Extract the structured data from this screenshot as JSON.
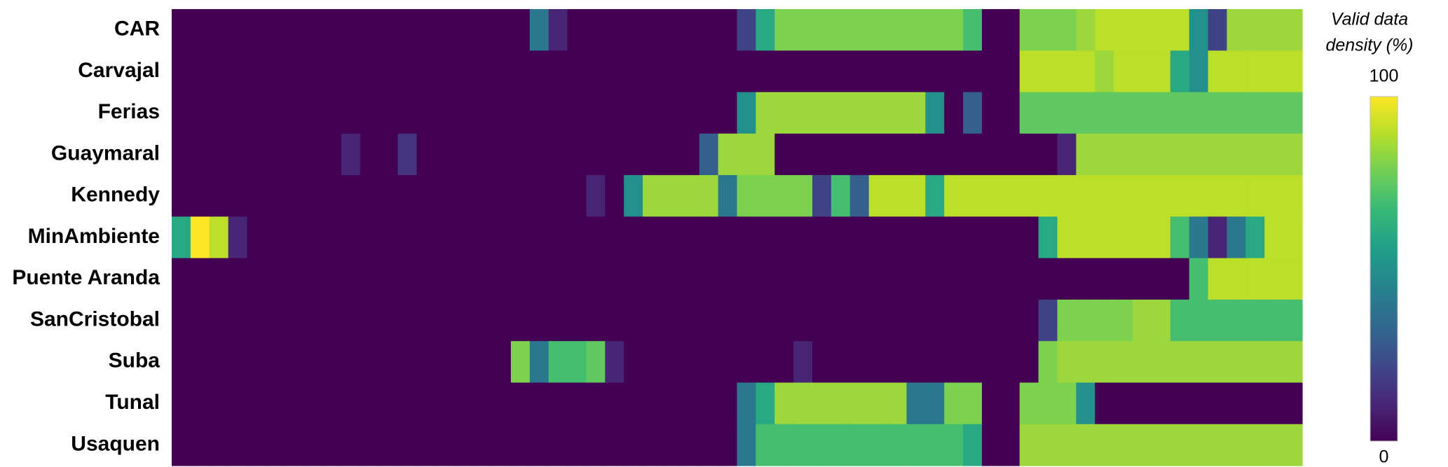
{
  "chart_data": {
    "type": "heatmap",
    "colorbar_title": [
      "Valid data",
      "density (%)"
    ],
    "colormap": "viridis",
    "zlim": [
      0,
      100
    ],
    "zticks": [
      0,
      100
    ],
    "rows": [
      "CAR",
      "Carvajal",
      "Ferias",
      "Guaymaral",
      "Kennedy",
      "MinAmbiente",
      "Puente Aranda",
      "SanCristobal",
      "Suba",
      "Tunal",
      "Usaquen"
    ],
    "values": [
      [
        0,
        0,
        0,
        0,
        0,
        0,
        0,
        0,
        0,
        0,
        0,
        0,
        0,
        0,
        0,
        0,
        0,
        0,
        0,
        40,
        10,
        0,
        0,
        0,
        0,
        0,
        0,
        0,
        0,
        0,
        20,
        60,
        80,
        80,
        80,
        80,
        80,
        80,
        80,
        80,
        80,
        80,
        70,
        0,
        0,
        80,
        80,
        80,
        85,
        90,
        90,
        90,
        90,
        90,
        50,
        20,
        85,
        85,
        85,
        85
      ],
      [
        0,
        0,
        0,
        0,
        0,
        0,
        0,
        0,
        0,
        0,
        0,
        0,
        0,
        0,
        0,
        0,
        0,
        0,
        0,
        0,
        0,
        0,
        0,
        0,
        0,
        0,
        0,
        0,
        0,
        0,
        0,
        0,
        0,
        0,
        0,
        0,
        0,
        0,
        0,
        0,
        0,
        0,
        0,
        0,
        0,
        90,
        90,
        90,
        90,
        85,
        90,
        90,
        90,
        60,
        50,
        90,
        90,
        90,
        90,
        90
      ],
      [
        0,
        0,
        0,
        0,
        0,
        0,
        0,
        0,
        0,
        0,
        0,
        0,
        0,
        0,
        0,
        0,
        0,
        0,
        0,
        0,
        0,
        0,
        0,
        0,
        0,
        0,
        0,
        0,
        0,
        0,
        50,
        85,
        85,
        85,
        85,
        85,
        85,
        85,
        85,
        85,
        50,
        0,
        30,
        0,
        0,
        75,
        75,
        75,
        75,
        75,
        75,
        75,
        75,
        75,
        75,
        75,
        75,
        75,
        75,
        75
      ],
      [
        0,
        0,
        0,
        0,
        0,
        0,
        0,
        0,
        0,
        10,
        0,
        0,
        15,
        0,
        0,
        0,
        0,
        0,
        0,
        0,
        0,
        0,
        0,
        0,
        0,
        0,
        0,
        0,
        30,
        85,
        85,
        85,
        0,
        0,
        0,
        0,
        0,
        0,
        0,
        0,
        0,
        0,
        0,
        0,
        0,
        0,
        0,
        10,
        85,
        85,
        85,
        85,
        85,
        85,
        85,
        85,
        85,
        85,
        85,
        85
      ],
      [
        0,
        0,
        0,
        0,
        0,
        0,
        0,
        0,
        0,
        0,
        0,
        0,
        0,
        0,
        0,
        0,
        0,
        0,
        0,
        0,
        0,
        0,
        10,
        0,
        50,
        85,
        85,
        85,
        85,
        40,
        80,
        80,
        80,
        80,
        20,
        70,
        30,
        90,
        90,
        90,
        60,
        90,
        90,
        90,
        90,
        90,
        90,
        90,
        90,
        90,
        90,
        90,
        90,
        90,
        90,
        90,
        90,
        90,
        90,
        90
      ],
      [
        60,
        100,
        90,
        10,
        0,
        0,
        0,
        0,
        0,
        0,
        0,
        0,
        0,
        0,
        0,
        0,
        0,
        0,
        0,
        0,
        0,
        0,
        0,
        0,
        0,
        0,
        0,
        0,
        0,
        0,
        0,
        0,
        0,
        0,
        0,
        0,
        0,
        0,
        0,
        0,
        0,
        0,
        0,
        0,
        0,
        0,
        60,
        90,
        90,
        90,
        90,
        90,
        90,
        70,
        40,
        10,
        40,
        60,
        90,
        90
      ],
      [
        0,
        0,
        0,
        0,
        0,
        0,
        0,
        0,
        0,
        0,
        0,
        0,
        0,
        0,
        0,
        0,
        0,
        0,
        0,
        0,
        0,
        0,
        0,
        0,
        0,
        0,
        0,
        0,
        0,
        0,
        0,
        0,
        0,
        0,
        0,
        0,
        0,
        0,
        0,
        0,
        0,
        0,
        0,
        0,
        0,
        0,
        0,
        0,
        0,
        0,
        0,
        0,
        0,
        0,
        70,
        90,
        90,
        90,
        90,
        90
      ],
      [
        0,
        0,
        0,
        0,
        0,
        0,
        0,
        0,
        0,
        0,
        0,
        0,
        0,
        0,
        0,
        0,
        0,
        0,
        0,
        0,
        0,
        0,
        0,
        0,
        0,
        0,
        0,
        0,
        0,
        0,
        0,
        0,
        0,
        0,
        0,
        0,
        0,
        0,
        0,
        0,
        0,
        0,
        0,
        0,
        0,
        0,
        20,
        80,
        80,
        80,
        80,
        85,
        85,
        70,
        70,
        70,
        70,
        70,
        70,
        70
      ],
      [
        0,
        0,
        0,
        0,
        0,
        0,
        0,
        0,
        0,
        0,
        0,
        0,
        0,
        0,
        0,
        0,
        0,
        0,
        80,
        40,
        70,
        70,
        75,
        10,
        0,
        0,
        0,
        0,
        0,
        0,
        0,
        0,
        0,
        10,
        0,
        0,
        0,
        0,
        0,
        0,
        0,
        0,
        0,
        0,
        0,
        0,
        80,
        85,
        85,
        85,
        85,
        85,
        85,
        85,
        85,
        85,
        85,
        85,
        85,
        85
      ],
      [
        0,
        0,
        0,
        0,
        0,
        0,
        0,
        0,
        0,
        0,
        0,
        0,
        0,
        0,
        0,
        0,
        0,
        0,
        0,
        0,
        0,
        0,
        0,
        0,
        0,
        0,
        0,
        0,
        0,
        0,
        40,
        60,
        85,
        85,
        85,
        85,
        85,
        85,
        85,
        40,
        40,
        80,
        80,
        0,
        0,
        80,
        80,
        80,
        50,
        0,
        0,
        0,
        0,
        0,
        0,
        0,
        0,
        0,
        0,
        0
      ],
      [
        0,
        0,
        0,
        0,
        0,
        0,
        0,
        0,
        0,
        0,
        0,
        0,
        0,
        0,
        0,
        0,
        0,
        0,
        0,
        0,
        0,
        0,
        0,
        0,
        0,
        0,
        0,
        0,
        0,
        0,
        40,
        70,
        70,
        70,
        70,
        70,
        70,
        70,
        70,
        70,
        70,
        70,
        60,
        0,
        0,
        85,
        85,
        85,
        85,
        85,
        85,
        85,
        85,
        85,
        85,
        85,
        85,
        85,
        85,
        85
      ]
    ]
  }
}
